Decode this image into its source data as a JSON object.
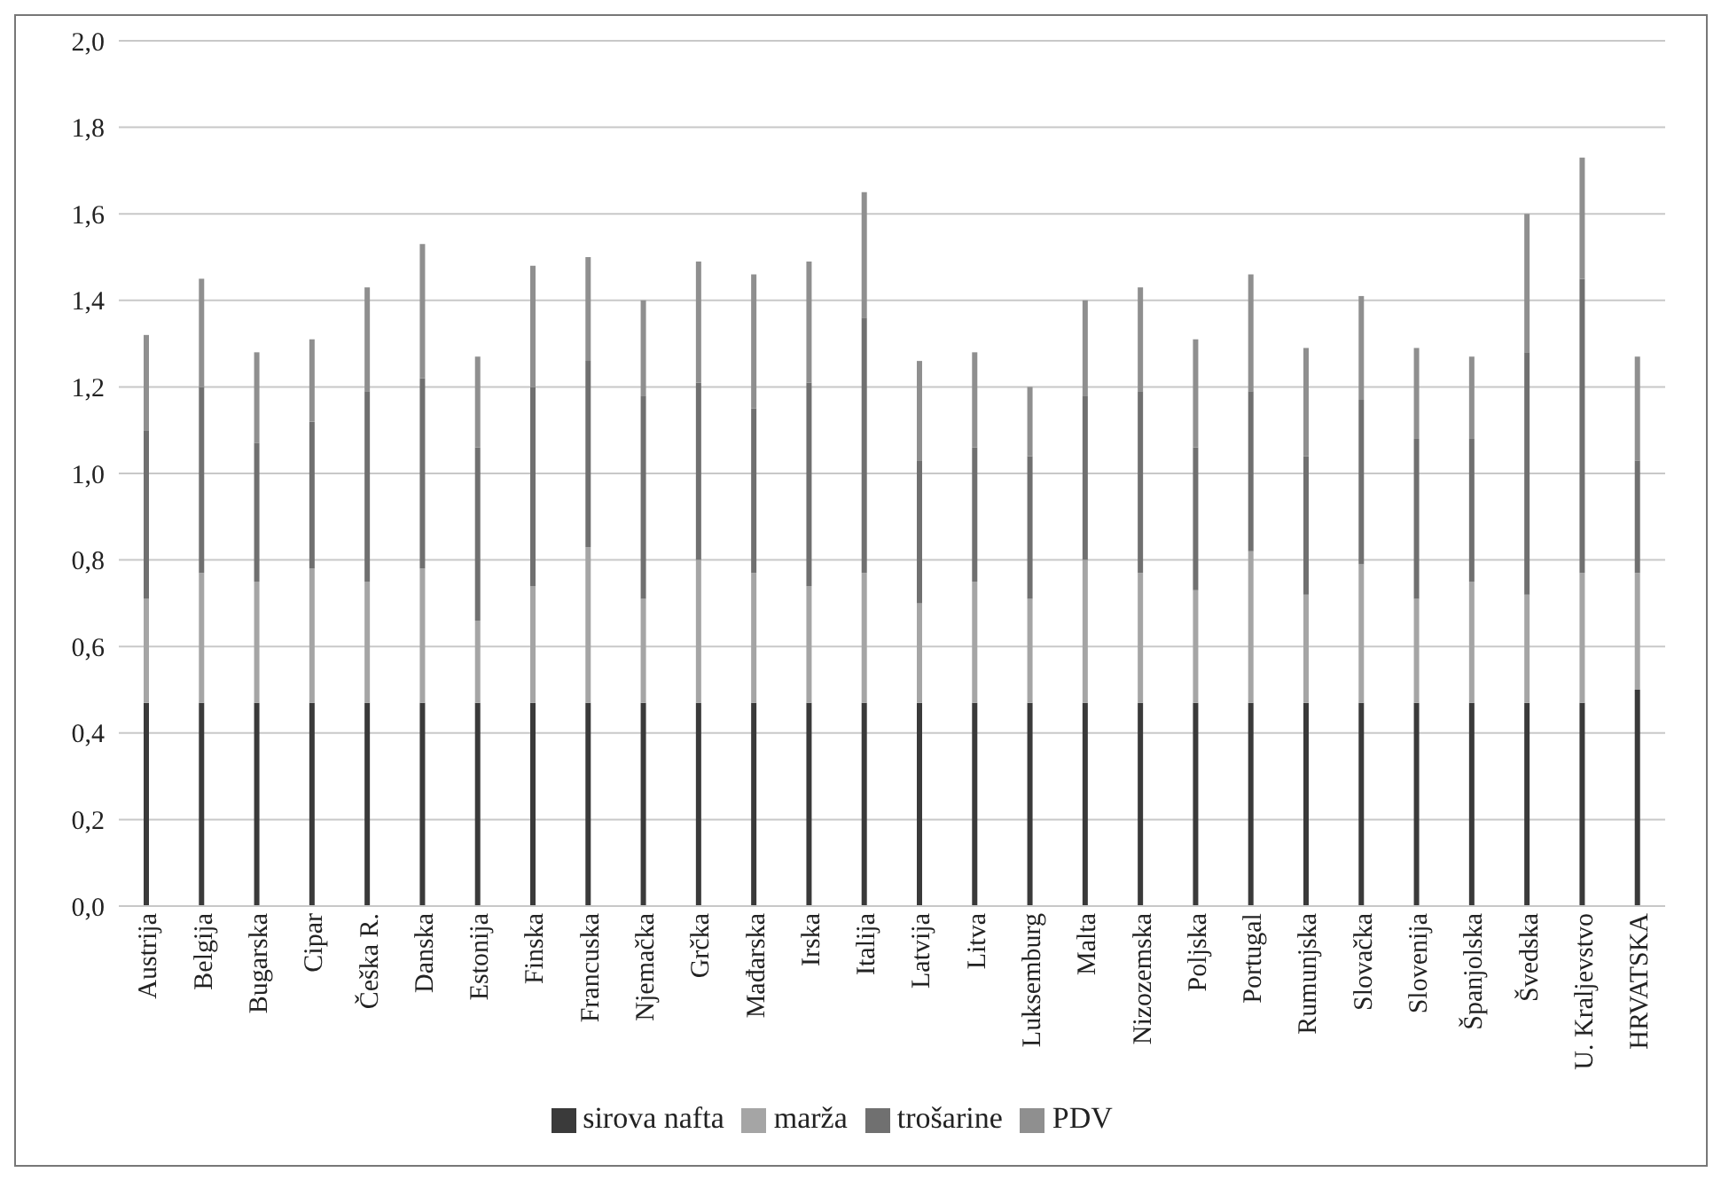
{
  "chart_data": {
    "type": "bar",
    "stacked": true,
    "categories": [
      "Austrija",
      "Belgija",
      "Bugarska",
      "Cipar",
      "Češka R.",
      "Danska",
      "Estonija",
      "Finska",
      "Francuska",
      "Njemačka",
      "Grčka",
      "Mađarska",
      "Irska",
      "Italija",
      "Latvija",
      "Litva",
      "Luksemburg",
      "Malta",
      "Nizozemska",
      "Poljska",
      "Portugal",
      "Rumunjska",
      "Slovačka",
      "Slovenija",
      "Španjolska",
      "Švedska",
      "U. Kraljevstvo",
      "HRVATSKA"
    ],
    "series": [
      {
        "name": "sirova nafta",
        "color": "#3a3a3a",
        "values": [
          0.47,
          0.47,
          0.47,
          0.47,
          0.47,
          0.47,
          0.47,
          0.47,
          0.47,
          0.47,
          0.47,
          0.47,
          0.47,
          0.47,
          0.47,
          0.47,
          0.47,
          0.47,
          0.47,
          0.47,
          0.47,
          0.47,
          0.47,
          0.47,
          0.47,
          0.47,
          0.47,
          0.5
        ]
      },
      {
        "name": "marža",
        "color": "#a5a5a5",
        "values": [
          0.24,
          0.3,
          0.28,
          0.31,
          0.28,
          0.31,
          0.19,
          0.27,
          0.36,
          0.24,
          0.33,
          0.3,
          0.27,
          0.3,
          0.23,
          0.28,
          0.24,
          0.33,
          0.3,
          0.26,
          0.35,
          0.25,
          0.32,
          0.24,
          0.28,
          0.25,
          0.3,
          0.27
        ]
      },
      {
        "name": "trošarine",
        "color": "#707070",
        "values": [
          0.39,
          0.43,
          0.32,
          0.34,
          0.44,
          0.44,
          0.4,
          0.46,
          0.43,
          0.47,
          0.41,
          0.38,
          0.47,
          0.59,
          0.33,
          0.31,
          0.33,
          0.38,
          0.42,
          0.33,
          0.37,
          0.32,
          0.38,
          0.37,
          0.33,
          0.56,
          0.68,
          0.26
        ]
      },
      {
        "name": "PDV",
        "color": "#8f8f8f",
        "values": [
          0.22,
          0.25,
          0.21,
          0.19,
          0.24,
          0.31,
          0.21,
          0.28,
          0.24,
          0.22,
          0.28,
          0.31,
          0.28,
          0.29,
          0.23,
          0.22,
          0.16,
          0.22,
          0.24,
          0.25,
          0.27,
          0.25,
          0.24,
          0.21,
          0.19,
          0.32,
          0.28,
          0.24
        ]
      }
    ],
    "ylim": [
      0,
      2
    ],
    "yticks": [
      {
        "value": 0,
        "label": "0,0"
      },
      {
        "value": 0.2,
        "label": "0,2"
      },
      {
        "value": 0.4,
        "label": "0,4"
      },
      {
        "value": 0.6,
        "label": "0,6"
      },
      {
        "value": 0.8,
        "label": "0,8"
      },
      {
        "value": 1,
        "label": "1,0"
      },
      {
        "value": 1.2,
        "label": "1,2"
      },
      {
        "value": 1.4,
        "label": "1,4"
      },
      {
        "value": 1.6,
        "label": "1,6"
      },
      {
        "value": 1.8,
        "label": "1,8"
      },
      {
        "value": 2,
        "label": "2,0"
      }
    ],
    "grid": "y",
    "legend": "bottom"
  }
}
